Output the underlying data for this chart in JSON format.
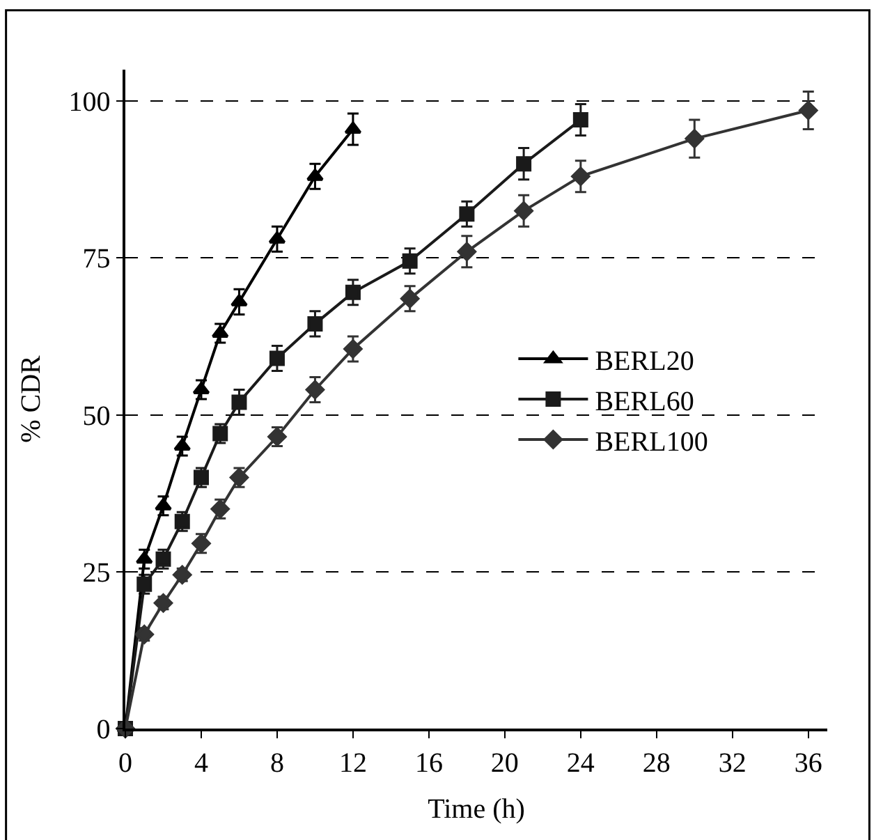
{
  "chart_data": {
    "type": "line",
    "xlabel": "Time (h)",
    "ylabel": "% CDR",
    "xlim": [
      0,
      37
    ],
    "xticks": [
      0,
      4,
      8,
      12,
      16,
      20,
      24,
      28,
      32,
      36
    ],
    "ylim": [
      0,
      105
    ],
    "yticks": [
      0,
      25,
      50,
      75,
      100
    ],
    "grid": "y",
    "legend": "right",
    "line_style": "solid",
    "series": [
      {
        "name": "BERL20",
        "color": "#000000",
        "marker": "triangle",
        "x": [
          0,
          1,
          2,
          3,
          4,
          5,
          6,
          8,
          10,
          12
        ],
        "values": [
          0,
          27,
          35.5,
          45,
          54,
          63,
          68,
          78,
          88,
          95.5
        ],
        "errors": [
          null,
          1.5,
          1.5,
          1.5,
          1.5,
          1.5,
          2,
          2,
          2,
          2.5
        ]
      },
      {
        "name": "BERL60",
        "color": "#1a1a1a",
        "marker": "square",
        "x": [
          0,
          1,
          2,
          3,
          4,
          5,
          6,
          8,
          10,
          12,
          15,
          18,
          21,
          24
        ],
        "values": [
          0,
          23,
          27,
          33,
          40,
          47,
          52,
          59,
          64.5,
          69.5,
          74.5,
          82,
          90,
          97
        ],
        "errors": [
          null,
          1.5,
          1.5,
          1.5,
          1.5,
          1.5,
          2,
          2,
          2,
          2,
          2,
          2,
          2.5,
          2.5
        ]
      },
      {
        "name": "BERL100",
        "color": "#333333",
        "marker": "diamond",
        "x": [
          0,
          1,
          2,
          3,
          4,
          5,
          6,
          8,
          10,
          12,
          15,
          18,
          21,
          24,
          30,
          36
        ],
        "values": [
          0,
          15,
          20,
          24.5,
          29.5,
          35,
          40,
          46.5,
          54,
          60.5,
          68.5,
          76,
          82.5,
          88,
          94,
          98.5
        ],
        "errors": [
          null,
          1,
          1,
          1,
          1.5,
          1.5,
          1.5,
          1.5,
          2,
          2,
          2,
          2.5,
          2.5,
          2.5,
          3,
          3
        ]
      }
    ]
  }
}
